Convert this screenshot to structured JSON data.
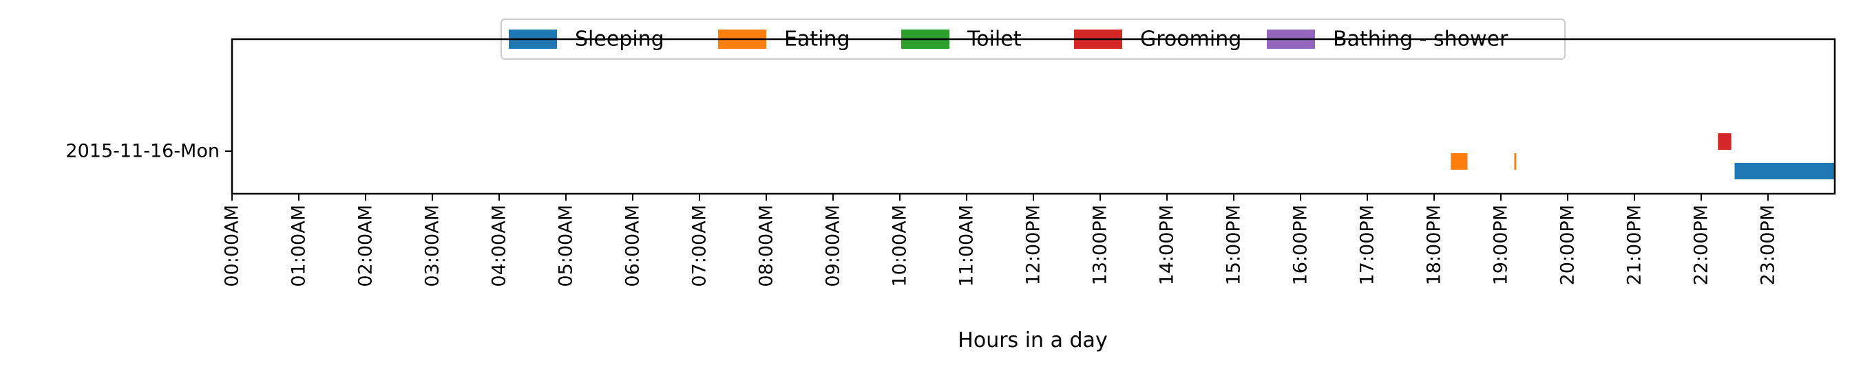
{
  "chart_data": {
    "type": "timeline",
    "title": "",
    "xlabel": "Hours in a day",
    "ylabel": "",
    "xlim": [
      0,
      24
    ],
    "legend_placement": "top-center",
    "categories": [
      "2015-11-16-Mon"
    ],
    "x_tick_labels": [
      "00:00AM",
      "01:00AM",
      "02:00AM",
      "03:00AM",
      "04:00AM",
      "05:00AM",
      "06:00AM",
      "07:00AM",
      "08:00AM",
      "09:00AM",
      "10:00AM",
      "11:00AM",
      "12:00PM",
      "13:00PM",
      "14:00PM",
      "15:00PM",
      "16:00PM",
      "17:00PM",
      "18:00PM",
      "19:00PM",
      "20:00PM",
      "21:00PM",
      "22:00PM",
      "23:00PM"
    ],
    "series": [
      {
        "name": "Sleeping",
        "color": "#1f77b4",
        "segments": [
          {
            "day": "2015-11-16-Mon",
            "start": 22.5,
            "end": 24.0
          }
        ]
      },
      {
        "name": "Eating",
        "color": "#ff7f0e",
        "segments": [
          {
            "day": "2015-11-16-Mon",
            "start": 18.25,
            "end": 18.5
          },
          {
            "day": "2015-11-16-Mon",
            "start": 19.2,
            "end": 19.23
          }
        ]
      },
      {
        "name": "Toilet",
        "color": "#2ca02c",
        "segments": []
      },
      {
        "name": "Grooming",
        "color": "#d62728",
        "segments": [
          {
            "day": "2015-11-16-Mon",
            "start": 22.25,
            "end": 22.45
          }
        ]
      },
      {
        "name": "Bathing - shower",
        "color": "#9467bd",
        "segments": []
      }
    ]
  }
}
